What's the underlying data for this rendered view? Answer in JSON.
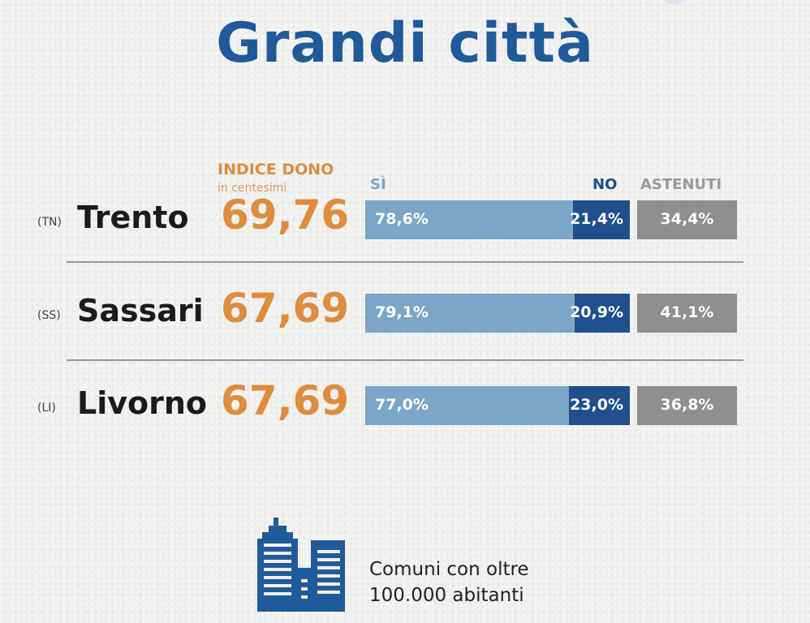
{
  "title": "Grandi città",
  "index_header": {
    "label": "INDICE DONO",
    "sublabel": "in centesimi"
  },
  "column_headers": {
    "yes": "SÌ",
    "no": "NO",
    "abstain": "ASTENUTI"
  },
  "colors": {
    "title": "#1f5a9a",
    "index": "#de8c3e",
    "yes": "#7ba6c7",
    "no": "#1f4f8c",
    "abstain": "#8f8f8f"
  },
  "rows": [
    {
      "prov": "(TN)",
      "city": "Trento",
      "index": "69,76",
      "yes": "78,6%",
      "no": "21,4%",
      "abstain": "34,4%"
    },
    {
      "prov": "(SS)",
      "city": "Sassari",
      "index": "67,69",
      "yes": "79,1%",
      "no": "20,9%",
      "abstain": "41,1%"
    },
    {
      "prov": "(LI)",
      "city": "Livorno",
      "index": "67,69",
      "yes": "77,0%",
      "no": "23,0%",
      "abstain": "36,8%"
    }
  ],
  "footer": {
    "icon": "buildings-icon",
    "line1": "Comuni con oltre",
    "line2": "100.000 abitanti"
  },
  "chart_data": {
    "type": "bar",
    "title": "Grandi città",
    "categories": [
      "Trento",
      "Sassari",
      "Livorno"
    ],
    "series": [
      {
        "name": "INDICE DONO",
        "values": [
          69.76,
          67.69,
          67.69
        ]
      },
      {
        "name": "SÌ",
        "values": [
          78.6,
          79.1,
          77.0
        ]
      },
      {
        "name": "NO",
        "values": [
          21.4,
          20.9,
          23.0
        ]
      },
      {
        "name": "ASTENUTI",
        "values": [
          34.4,
          41.1,
          36.8
        ]
      }
    ]
  }
}
